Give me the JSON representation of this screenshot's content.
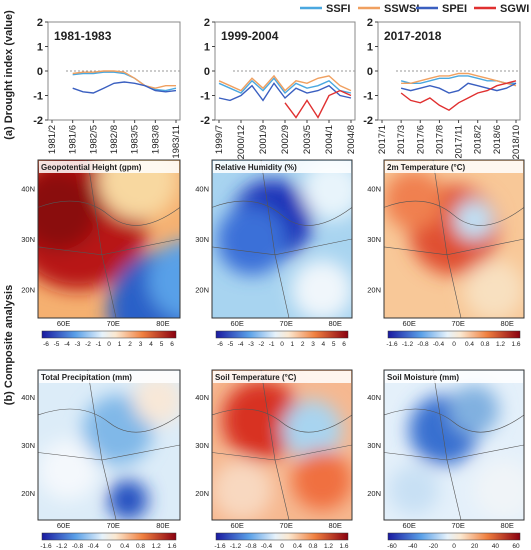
{
  "chart_data": [
    {
      "type": "line",
      "title": "1981-1983",
      "categories": [
        "1981/2",
        null,
        "1981/6",
        null,
        "1982/5",
        null,
        "1982/8",
        null,
        "1983/5",
        null,
        "1983/8",
        null,
        "1983/11"
      ],
      "series": [
        {
          "name": "SSFI",
          "color": "#4aa8e0",
          "values": [
            null,
            null,
            -0.15,
            -0.1,
            -0.1,
            -0.05,
            -0.05,
            -0.1,
            -0.3,
            -0.6,
            -0.75,
            -0.8,
            -0.7
          ]
        },
        {
          "name": "SSWSI",
          "color": "#f0a060",
          "values": [
            null,
            null,
            -0.1,
            -0.05,
            -0.05,
            0,
            0,
            -0.05,
            -0.3,
            -0.6,
            -0.7,
            -0.6,
            -0.6
          ]
        },
        {
          "name": "SPEI",
          "color": "#3a5fc0",
          "values": [
            null,
            null,
            -0.7,
            -0.85,
            -0.9,
            -0.7,
            -0.5,
            -0.45,
            -0.5,
            -0.6,
            -0.8,
            -0.85,
            -0.8
          ]
        }
      ],
      "ylim": [
        -2,
        2
      ],
      "yticks": [
        -2,
        -1,
        0,
        1,
        2
      ]
    },
    {
      "type": "line",
      "title": "1999-2004",
      "categories": [
        "1999/7",
        null,
        "2000/12",
        null,
        "2001/9",
        null,
        "2002/9",
        null,
        "2003/5",
        null,
        "2004/1",
        null,
        "2004/8"
      ],
      "series": [
        {
          "name": "SSFI",
          "color": "#4aa8e0",
          "values": [
            -0.5,
            -0.7,
            -0.9,
            -0.4,
            -0.8,
            -0.3,
            -0.9,
            -0.5,
            -0.7,
            -0.6,
            -0.4,
            -0.8,
            -0.9
          ]
        },
        {
          "name": "SSWSI",
          "color": "#f0a060",
          "values": [
            -0.4,
            -0.6,
            -0.8,
            -0.3,
            -0.7,
            -0.2,
            -0.8,
            -0.4,
            -0.5,
            -0.3,
            -0.2,
            -0.6,
            -0.8
          ]
        },
        {
          "name": "SPEI",
          "color": "#3a5fc0",
          "values": [
            -1.1,
            -1.2,
            -1,
            -0.6,
            -1.2,
            -0.5,
            -1.1,
            -0.7,
            -0.9,
            -0.8,
            -0.6,
            -1,
            -1.1
          ]
        },
        {
          "name": "SGWI",
          "color": "#e03030",
          "values": [
            null,
            null,
            null,
            null,
            null,
            null,
            -1.3,
            -1.9,
            -1.2,
            -1.9,
            -1,
            -0.8,
            -1
          ]
        }
      ],
      "ylim": [
        -2,
        2
      ],
      "yticks": [
        -2,
        -1,
        0,
        1,
        2
      ]
    },
    {
      "type": "line",
      "title": "2017-2018",
      "categories": [
        "2017/1",
        null,
        "2017/3",
        null,
        "2017/6",
        null,
        "2017/8",
        null,
        "2017/11",
        null,
        "2018/2",
        null,
        "2018/6",
        null,
        "2018/10"
      ],
      "series": [
        {
          "name": "SSFI",
          "color": "#4aa8e0",
          "values": [
            null,
            null,
            -0.4,
            -0.5,
            -0.5,
            -0.4,
            -0.3,
            -0.3,
            -0.2,
            -0.2,
            -0.3,
            -0.4,
            -0.4,
            -0.5,
            -0.5
          ]
        },
        {
          "name": "SSWSI",
          "color": "#f0a060",
          "values": [
            null,
            null,
            -0.5,
            -0.5,
            -0.4,
            -0.3,
            -0.2,
            -0.2,
            -0.1,
            -0.1,
            -0.2,
            -0.3,
            -0.4,
            -0.5,
            -0.6
          ]
        },
        {
          "name": "SPEI",
          "color": "#3a5fc0",
          "values": [
            null,
            null,
            -0.7,
            -0.8,
            -0.7,
            -0.6,
            -0.7,
            -0.9,
            -0.8,
            -0.5,
            -0.6,
            -0.7,
            -0.8,
            -0.7,
            -0.5
          ]
        },
        {
          "name": "SGWI",
          "color": "#e03030",
          "values": [
            null,
            null,
            -0.9,
            -1.2,
            -1.3,
            -1.1,
            -1.4,
            -1.6,
            -1.3,
            -1.1,
            -0.9,
            -0.8,
            -0.6,
            -0.5,
            -0.4
          ]
        }
      ],
      "ylim": [
        -2,
        2
      ],
      "yticks": [
        -2,
        -1,
        0,
        1,
        2
      ]
    }
  ],
  "panel_a_label": "(a)",
  "ylabel": "Drought index (value)",
  "panel_b_label": "(b)",
  "row_label": "Composite analysis",
  "maps": [
    {
      "title": "Geopotential Height (gpm)",
      "colorbar_ticks": [
        -6,
        -5,
        -4,
        -3,
        -2,
        -1,
        0,
        1,
        2,
        3,
        4,
        5,
        6
      ]
    },
    {
      "title": "Relative Humidity (%)",
      "colorbar_ticks": [
        -6,
        -5,
        -4,
        -3,
        -2,
        -1,
        0,
        1,
        2,
        3,
        4,
        5,
        6
      ]
    },
    {
      "title": "2m Temperature (°C)",
      "colorbar_ticks": [
        -1.6,
        -1.2,
        -0.8,
        -0.4,
        0,
        0.4,
        0.8,
        1.2,
        1.6
      ]
    },
    {
      "title": "Total Precipitation (mm)",
      "colorbar_ticks": [
        -1.6,
        -1.2,
        -0.8,
        -0.4,
        0,
        0.4,
        0.8,
        1.2,
        1.6
      ]
    },
    {
      "title": "Soil Temperature (°C)",
      "colorbar_ticks": [
        -1.6,
        -1.2,
        -0.8,
        -0.4,
        0,
        0.4,
        0.8,
        1.2,
        1.6
      ]
    },
    {
      "title": "Soil Moisture (mm)",
      "colorbar_ticks": [
        -60,
        -40,
        -20,
        0,
        20,
        40,
        60
      ]
    }
  ],
  "lat_labels": [
    "40N",
    "30N",
    "20N"
  ],
  "lon_labels": [
    "60E",
    "70E",
    "80E"
  ]
}
